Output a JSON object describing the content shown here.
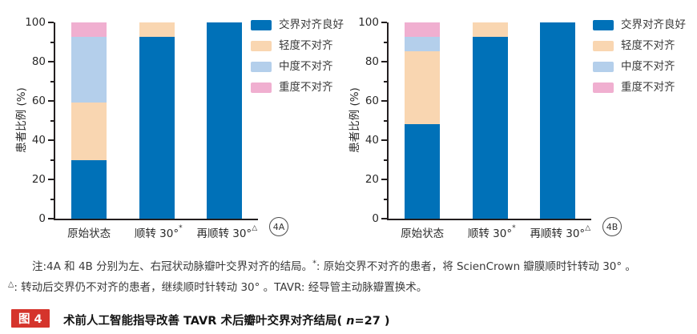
{
  "figure": {
    "note": {
      "line1_text": "注:4A 和 4B 分别为左、右冠状动脉瓣叶交界对齐的结局。",
      "line1_sup": "*",
      "line1_rest": ": 原始交界不对齐的患者，将 ScienCrown 瓣膜顺时针转动 30° 。",
      "line2_sup": "△",
      "line2_rest": ": 转动后交界仍不对齐的患者，继续顺时针转动 30° 。TAVR: 经导管主动脉瓣置换术。"
    },
    "caption": {
      "badge": "图 4",
      "text_prefix": "术前人工智能指导改善 TAVR 术后瓣叶交界对齐结局( ",
      "n_var": "n",
      "text_suffix": "=27 )"
    },
    "colors": {
      "accent_red": "#d5342c",
      "bar_good": "#0071b8",
      "bar_mild": "#f9d6b1",
      "bar_moderate": "#b4cfeb",
      "bar_severe": "#f0afd0",
      "axis": "#231f20"
    }
  },
  "chart_data": [
    {
      "type": "bar",
      "stacked": true,
      "panel_tag": "4A",
      "title": "",
      "xlabel": "",
      "ylabel": "患者比例 (%)",
      "ylim": [
        0,
        100
      ],
      "yticks": [
        0,
        20,
        40,
        60,
        80,
        100
      ],
      "grid": false,
      "legend_position": "right",
      "categories": [
        "原始状态",
        "顺转 30°*",
        "再顺转 30°△"
      ],
      "series": [
        {
          "name": "交界对齐良好",
          "color": "#0071b8",
          "values": [
            29.6,
            92.6,
            100
          ]
        },
        {
          "name": "轻度不对齐",
          "color": "#f9d6b1",
          "values": [
            29.6,
            7.4,
            0
          ]
        },
        {
          "name": "中度不对齐",
          "color": "#b4cfeb",
          "values": [
            33.4,
            0,
            0
          ]
        },
        {
          "name": "重度不对齐",
          "color": "#f0afd0",
          "values": [
            7.4,
            0,
            0
          ]
        }
      ]
    },
    {
      "type": "bar",
      "stacked": true,
      "panel_tag": "4B",
      "title": "",
      "xlabel": "",
      "ylabel": "患者比例 (%)",
      "ylim": [
        0,
        100
      ],
      "yticks": [
        0,
        20,
        40,
        60,
        80,
        100
      ],
      "grid": false,
      "legend_position": "right",
      "categories": [
        "原始状态",
        "顺转 30°*",
        "再顺转 30°△"
      ],
      "series": [
        {
          "name": "交界对齐良好",
          "color": "#0071b8",
          "values": [
            48.1,
            92.6,
            100
          ]
        },
        {
          "name": "轻度不对齐",
          "color": "#f9d6b1",
          "values": [
            37.1,
            7.4,
            0
          ]
        },
        {
          "name": "中度不对齐",
          "color": "#b4cfeb",
          "values": [
            7.4,
            0,
            0
          ]
        },
        {
          "name": "重度不对齐",
          "color": "#f0afd0",
          "values": [
            7.4,
            0,
            0
          ]
        }
      ]
    }
  ]
}
